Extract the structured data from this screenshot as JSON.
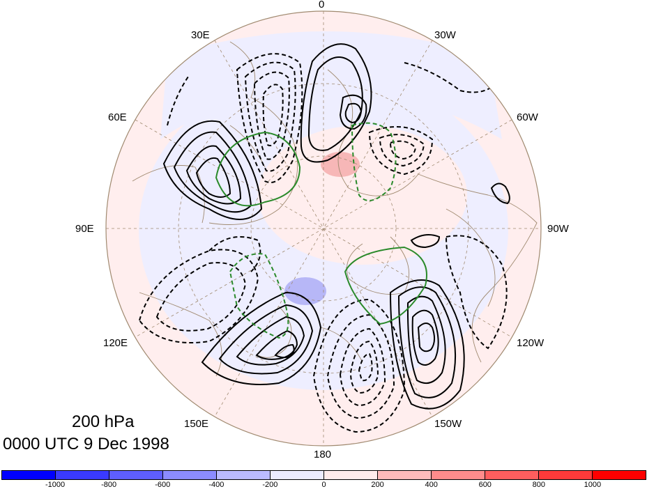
{
  "map": {
    "projection": "north-polar-stereographic",
    "pressure_level": "200 hPa",
    "valid_time": "0000 UTC 9 Dec 1998",
    "longitude_labels": [
      "0",
      "30W",
      "60W",
      "90W",
      "120W",
      "150W",
      "180",
      "150E",
      "120E",
      "90E",
      "60E",
      "30E"
    ],
    "colors": {
      "positive_contour": "#000000",
      "negative_contour": "#000000",
      "zero_contour": "#2a8a2a",
      "coastline": "#a08a70",
      "graticule": "#a08a70"
    }
  },
  "colorbar": {
    "ticks": [
      "-1000",
      "-800",
      "-600",
      "-400",
      "-200",
      "0",
      "200",
      "400",
      "600",
      "800",
      "1000"
    ],
    "colors": [
      "#0000ff",
      "#3a3aff",
      "#5e5eff",
      "#8c8cff",
      "#bbbbff",
      "#ececff",
      "#ffecec",
      "#ffbbbb",
      "#ff8c8c",
      "#ff5e5e",
      "#ff3a3a",
      "#ff0000"
    ]
  }
}
